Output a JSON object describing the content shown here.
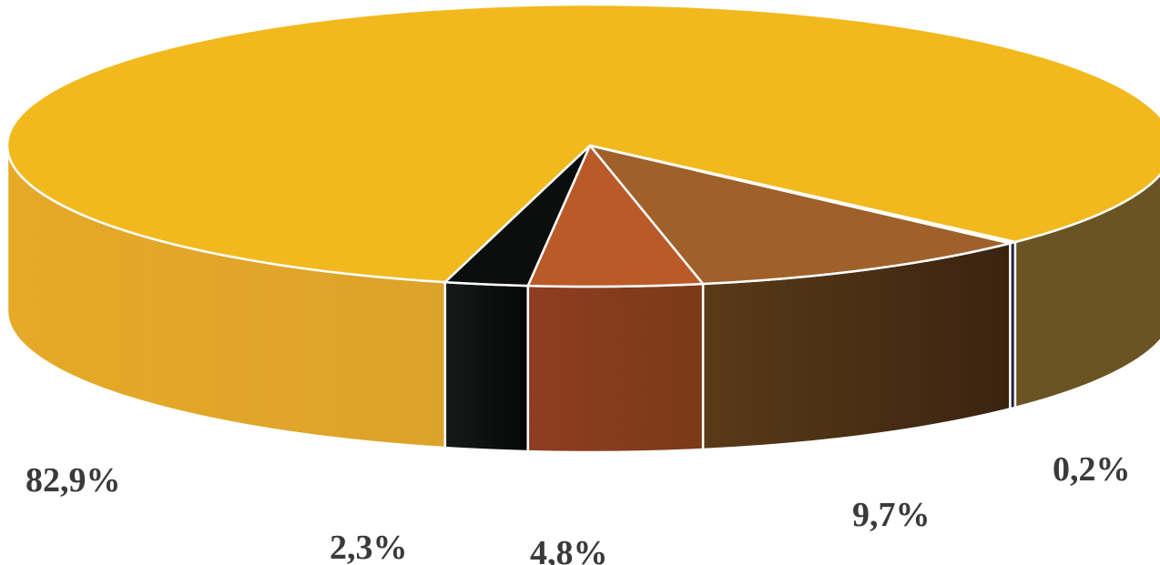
{
  "chart_data": {
    "type": "pie",
    "style": "3d",
    "categories": [
      "",
      "",
      "",
      "",
      ""
    ],
    "values": [
      82.9,
      2.3,
      4.8,
      9.7,
      0.2
    ],
    "labels": [
      "82,9%",
      "2,3%",
      "4,8%",
      "9,7%",
      "0,2%"
    ],
    "colors": {
      "top": [
        "#f2b91e",
        "#0b0e0c",
        "#ba5a29",
        "#9f6129",
        "#4a3a6e"
      ],
      "side_light": [
        "#e6a928",
        "#161a17",
        "#8f3d22",
        "#5a3a18",
        "#2a2244"
      ],
      "side_dark": [
        "#cc982e",
        "#050706",
        "#7a3a18",
        "#3a2410",
        "#1e1a33"
      ]
    },
    "right_rim_color": "#6a5424",
    "title": "",
    "legend": "none"
  }
}
